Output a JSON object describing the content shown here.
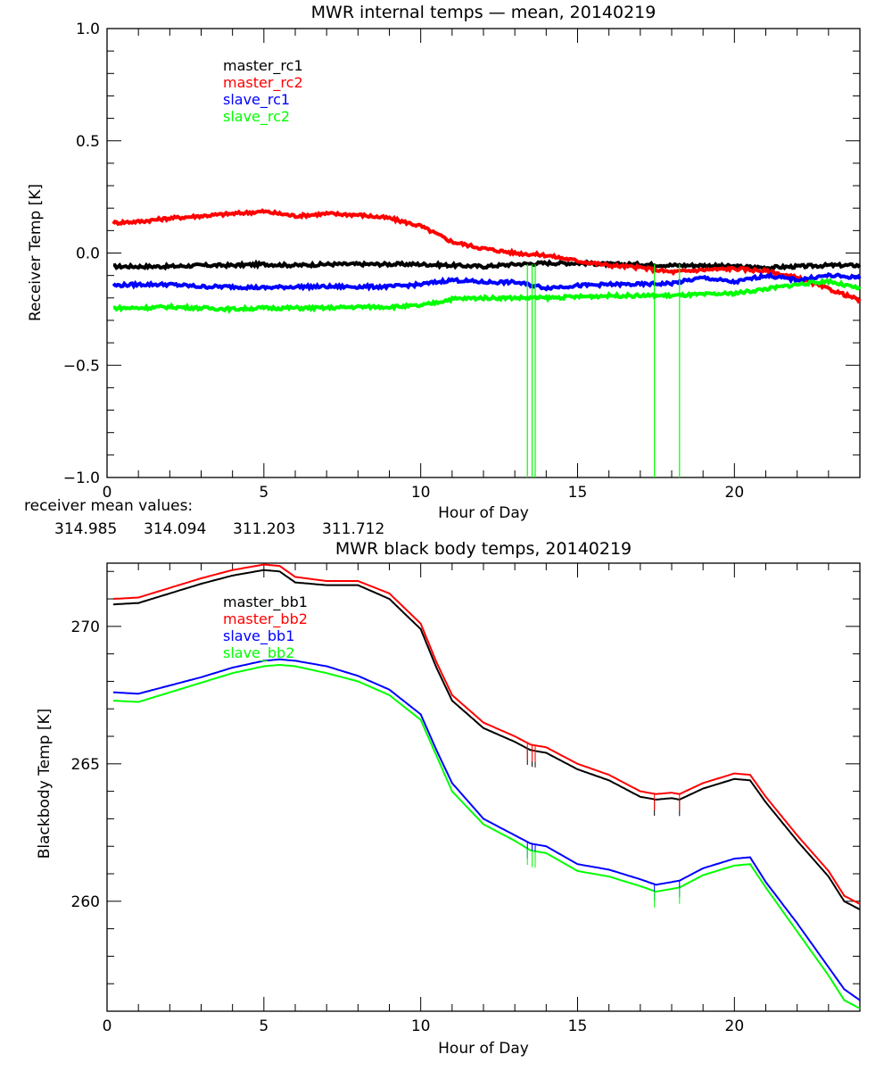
{
  "chart_data": [
    {
      "type": "line",
      "title": "MWR internal temps — mean, 20140219",
      "xlabel": "Hour of Day",
      "ylabel": "Receiver Temp [K]",
      "xlim": [
        0,
        24
      ],
      "ylim": [
        -1.0,
        1.0
      ],
      "x_ticks": [
        0,
        5,
        10,
        15,
        20
      ],
      "x_tick_labels": [
        "0",
        "5",
        "10",
        "15",
        "20"
      ],
      "y_ticks": [
        -1.0,
        -0.5,
        0.0,
        0.5,
        1.0
      ],
      "y_tick_labels": [
        "−1.0",
        "−0.5",
        "0.0",
        "0.5",
        "1.0"
      ],
      "grid": false,
      "legend_position": "top-left",
      "x": [
        0.2,
        1,
        2,
        3,
        4,
        5,
        6,
        7,
        8,
        9,
        10,
        11,
        12,
        13,
        14,
        15,
        16,
        17,
        18,
        19,
        20,
        21,
        22,
        23,
        24
      ],
      "series": [
        {
          "name": "master_rc1",
          "color": "#000000",
          "values": [
            -0.06,
            -0.06,
            -0.06,
            -0.055,
            -0.055,
            -0.05,
            -0.055,
            -0.05,
            -0.05,
            -0.05,
            -0.05,
            -0.055,
            -0.06,
            -0.05,
            -0.045,
            -0.045,
            -0.05,
            -0.05,
            -0.055,
            -0.055,
            -0.06,
            -0.065,
            -0.06,
            -0.055,
            -0.055
          ]
        },
        {
          "name": "master_rc2",
          "color": "#ff0000",
          "values": [
            0.135,
            0.14,
            0.155,
            0.165,
            0.175,
            0.185,
            0.165,
            0.175,
            0.17,
            0.155,
            0.12,
            0.05,
            0.02,
            0.0,
            -0.01,
            -0.035,
            -0.055,
            -0.065,
            -0.085,
            -0.075,
            -0.07,
            -0.08,
            -0.11,
            -0.16,
            -0.21
          ]
        },
        {
          "name": "slave_rc1",
          "color": "#0000ff",
          "values": [
            -0.145,
            -0.14,
            -0.14,
            -0.15,
            -0.15,
            -0.155,
            -0.15,
            -0.15,
            -0.15,
            -0.15,
            -0.14,
            -0.12,
            -0.13,
            -0.13,
            -0.155,
            -0.145,
            -0.14,
            -0.14,
            -0.135,
            -0.11,
            -0.13,
            -0.1,
            -0.12,
            -0.1,
            -0.11
          ]
        },
        {
          "name": "slave_rc2",
          "color": "#00ff00",
          "values": [
            -0.245,
            -0.245,
            -0.24,
            -0.245,
            -0.25,
            -0.245,
            -0.245,
            -0.245,
            -0.24,
            -0.24,
            -0.235,
            -0.205,
            -0.2,
            -0.2,
            -0.2,
            -0.195,
            -0.19,
            -0.19,
            -0.19,
            -0.185,
            -0.18,
            -0.16,
            -0.14,
            -0.125,
            -0.16
          ]
        }
      ],
      "spikes": {
        "hours": [
          13.4,
          13.55,
          13.65,
          17.45,
          18.25
        ],
        "bottom_value": -1.0,
        "color": "#00ff00"
      },
      "annotations": {
        "caption": "receiver mean values:",
        "mean_values": [
          {
            "value": "314.985",
            "color": "#000000"
          },
          {
            "value": "314.094",
            "color": "#ff0000"
          },
          {
            "value": "311.203",
            "color": "#0000ff"
          },
          {
            "value": "311.712",
            "color": "#00ff00"
          }
        ]
      }
    },
    {
      "type": "line",
      "title": "MWR black body temps, 20140219",
      "xlabel": "Hour of Day",
      "ylabel": "Blackbody Temp [K]",
      "xlim": [
        0,
        24
      ],
      "ylim": [
        256.0,
        272.3
      ],
      "x_ticks": [
        0,
        5,
        10,
        15,
        20
      ],
      "x_tick_labels": [
        "0",
        "5",
        "10",
        "15",
        "20"
      ],
      "y_ticks": [
        260,
        265,
        270
      ],
      "y_tick_labels": [
        "260",
        "265",
        "270"
      ],
      "grid": false,
      "legend_position": "top-left",
      "x": [
        0.2,
        1,
        2,
        3,
        4,
        5,
        5.5,
        6,
        7,
        8,
        9,
        10,
        10.5,
        11,
        12,
        13,
        13.5,
        14,
        15,
        16,
        17,
        17.5,
        18,
        18.25,
        19,
        20,
        20.5,
        21,
        22,
        23,
        23.5,
        24
      ],
      "series": [
        {
          "name": "master_bb1",
          "color": "#000000",
          "values": [
            270.8,
            270.85,
            271.2,
            271.55,
            271.85,
            272.05,
            272.0,
            271.6,
            271.5,
            271.5,
            271.0,
            269.9,
            268.5,
            267.3,
            266.3,
            265.8,
            265.5,
            265.4,
            264.8,
            264.4,
            263.8,
            263.7,
            263.75,
            263.7,
            264.1,
            264.45,
            264.4,
            263.6,
            262.2,
            260.9,
            260.0,
            259.7
          ]
        },
        {
          "name": "master_bb2",
          "color": "#ff0000",
          "values": [
            271.0,
            271.05,
            271.4,
            271.75,
            272.05,
            272.25,
            272.2,
            271.8,
            271.65,
            271.65,
            271.2,
            270.1,
            268.7,
            267.5,
            266.5,
            266.0,
            265.7,
            265.6,
            265.0,
            264.6,
            264.0,
            263.9,
            263.95,
            263.9,
            264.3,
            264.65,
            264.6,
            263.8,
            262.4,
            261.1,
            260.2,
            259.9
          ]
        },
        {
          "name": "slave_bb1",
          "color": "#0000ff",
          "values": [
            267.6,
            267.55,
            267.85,
            268.15,
            268.5,
            268.75,
            268.8,
            268.75,
            268.55,
            268.2,
            267.7,
            266.8,
            265.5,
            264.3,
            263.0,
            262.4,
            262.1,
            262.0,
            261.35,
            261.15,
            260.8,
            260.6,
            260.7,
            260.75,
            261.2,
            261.55,
            261.6,
            260.7,
            259.2,
            257.6,
            256.8,
            256.4
          ]
        },
        {
          "name": "slave_bb2",
          "color": "#00ff00",
          "values": [
            267.3,
            267.25,
            267.6,
            267.95,
            268.3,
            268.55,
            268.6,
            268.55,
            268.3,
            268.0,
            267.5,
            266.6,
            265.3,
            264.0,
            262.8,
            262.2,
            261.85,
            261.75,
            261.1,
            260.9,
            260.55,
            260.35,
            260.45,
            260.5,
            260.95,
            261.3,
            261.35,
            260.5,
            258.9,
            257.3,
            256.4,
            256.1
          ]
        }
      ],
      "spikes": {
        "hours": [
          13.4,
          13.55,
          13.65,
          17.45,
          18.25
        ],
        "drop_k": 0.6
      }
    }
  ]
}
